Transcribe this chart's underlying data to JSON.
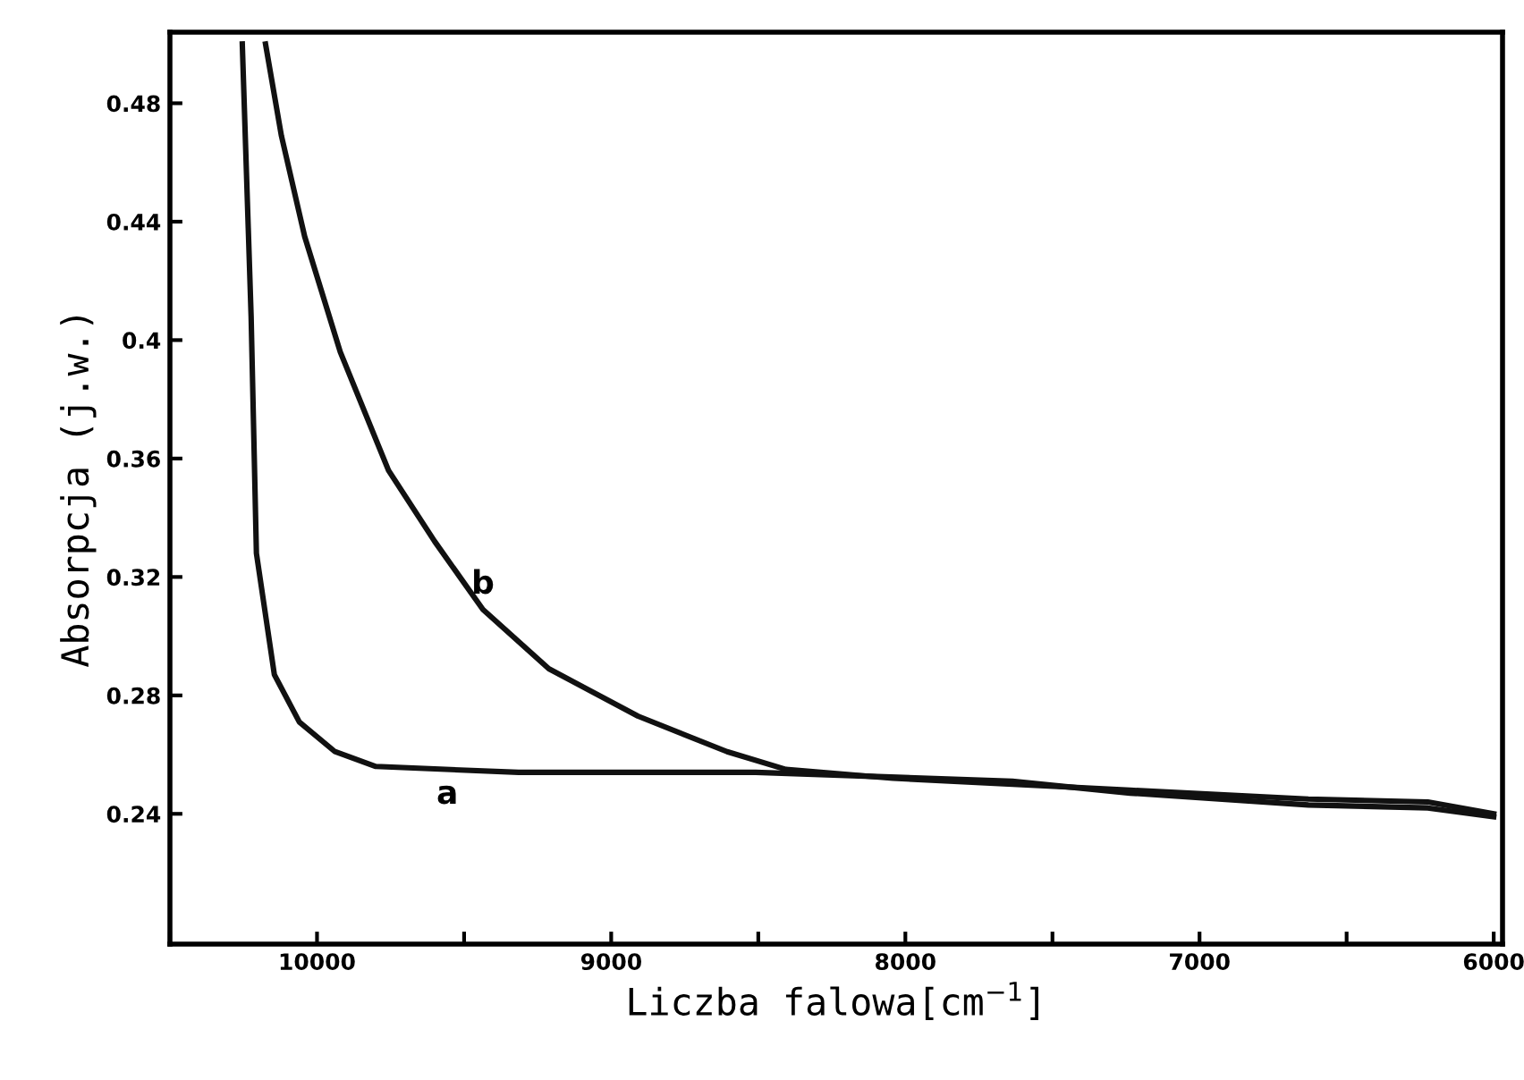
{
  "chart_data": {
    "type": "line",
    "xlabel": "Liczba falowa[cm$^{−1}$]",
    "ylabel": "Absorpcja (j.w.)",
    "xlim": [
      10500,
      5970
    ],
    "ylim": [
      0.196,
      0.504
    ],
    "xticks": [
      {
        "value": 10500,
        "label": null
      },
      10000,
      {
        "value": 9500,
        "label": null
      },
      9000,
      {
        "value": 8500,
        "label": null
      },
      8000,
      {
        "value": 7500,
        "label": null
      },
      7000,
      {
        "value": 6500,
        "label": null
      },
      6000
    ],
    "yticks": [
      0.24,
      0.28,
      0.32,
      0.36,
      0.4,
      0.44,
      0.48
    ],
    "series": [
      {
        "color": "#111111",
        "x": [
          10254,
          10224,
          10206,
          10145,
          10060,
          9939,
          9800,
          9315,
          8509,
          7636,
          7236,
          6630,
          6224,
          6000
        ],
        "values": [
          0.5,
          0.408,
          0.328,
          0.287,
          0.271,
          0.261,
          0.256,
          0.254,
          0.254,
          0.251,
          0.247,
          0.243,
          0.242,
          0.239
        ]
      },
      {
        "color": "#111111",
        "x": [
          10175,
          10121,
          10042,
          9921,
          9757,
          9600,
          9436,
          9212,
          8909,
          8606,
          8406,
          8042,
          7236,
          6630,
          6224,
          6000
        ],
        "values": [
          0.5,
          0.469,
          0.435,
          0.396,
          0.356,
          0.332,
          0.309,
          0.289,
          0.273,
          0.261,
          0.255,
          0.252,
          0.248,
          0.245,
          0.244,
          0.24
        ]
      }
    ],
    "annotations": [
      {
        "text": "a",
        "x": 9557,
        "y": 0.2548
      },
      {
        "text": "b",
        "x": 9436,
        "y": 0.309
      }
    ],
    "grid": false,
    "legend": false,
    "marker": "none",
    "line_style": "solid"
  }
}
